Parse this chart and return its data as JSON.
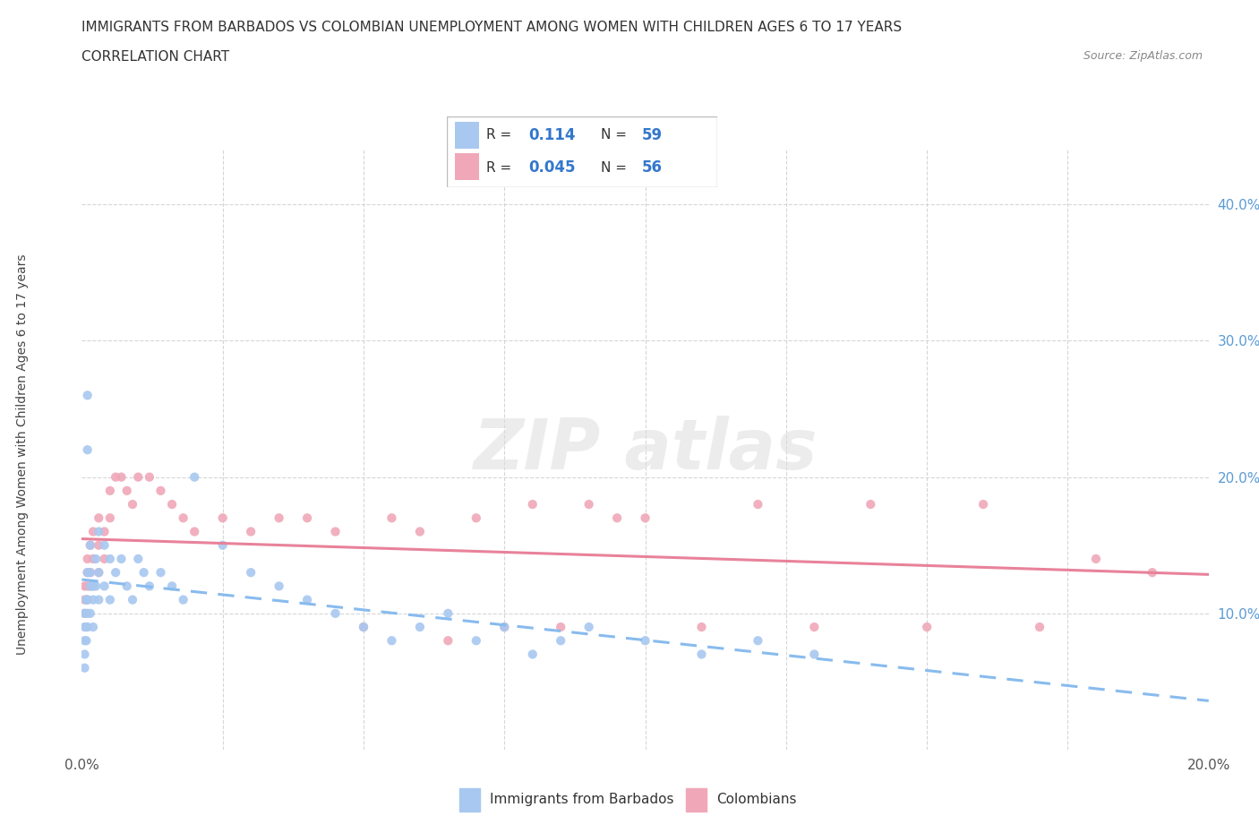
{
  "title": "IMMIGRANTS FROM BARBADOS VS COLOMBIAN UNEMPLOYMENT AMONG WOMEN WITH CHILDREN AGES 6 TO 17 YEARS",
  "subtitle": "CORRELATION CHART",
  "source": "Source: ZipAtlas.com",
  "color_barbados": "#a8c8f0",
  "color_colombians": "#f0a8b8",
  "color_line_barbados": "#88bbee",
  "color_line_colombians": "#e8829a",
  "xlim": [
    0.0,
    0.2
  ],
  "ylim": [
    0.0,
    0.44
  ],
  "barbados_x": [
    0.0005,
    0.0005,
    0.0005,
    0.0005,
    0.0005,
    0.0008,
    0.0008,
    0.0008,
    0.001,
    0.001,
    0.001,
    0.001,
    0.001,
    0.001,
    0.0015,
    0.0015,
    0.0015,
    0.0015,
    0.002,
    0.002,
    0.002,
    0.0025,
    0.0025,
    0.003,
    0.003,
    0.003,
    0.004,
    0.004,
    0.005,
    0.005,
    0.006,
    0.007,
    0.008,
    0.009,
    0.01,
    0.011,
    0.012,
    0.014,
    0.016,
    0.018,
    0.02,
    0.025,
    0.03,
    0.035,
    0.04,
    0.045,
    0.05,
    0.055,
    0.06,
    0.065,
    0.07,
    0.075,
    0.08,
    0.085,
    0.09,
    0.1,
    0.11,
    0.12,
    0.13
  ],
  "barbados_y": [
    0.1,
    0.09,
    0.08,
    0.07,
    0.06,
    0.11,
    0.09,
    0.08,
    0.26,
    0.22,
    0.13,
    0.11,
    0.1,
    0.09,
    0.15,
    0.13,
    0.12,
    0.1,
    0.12,
    0.11,
    0.09,
    0.14,
    0.12,
    0.16,
    0.13,
    0.11,
    0.15,
    0.12,
    0.14,
    0.11,
    0.13,
    0.14,
    0.12,
    0.11,
    0.14,
    0.13,
    0.12,
    0.13,
    0.12,
    0.11,
    0.2,
    0.15,
    0.13,
    0.12,
    0.11,
    0.1,
    0.09,
    0.08,
    0.09,
    0.1,
    0.08,
    0.09,
    0.07,
    0.08,
    0.09,
    0.08,
    0.07,
    0.08,
    0.07
  ],
  "colombians_x": [
    0.0005,
    0.0005,
    0.0005,
    0.001,
    0.001,
    0.001,
    0.001,
    0.0015,
    0.0015,
    0.0015,
    0.002,
    0.002,
    0.002,
    0.003,
    0.003,
    0.003,
    0.004,
    0.004,
    0.005,
    0.005,
    0.006,
    0.007,
    0.008,
    0.009,
    0.01,
    0.012,
    0.014,
    0.016,
    0.018,
    0.02,
    0.025,
    0.03,
    0.035,
    0.04,
    0.045,
    0.05,
    0.055,
    0.06,
    0.065,
    0.07,
    0.075,
    0.08,
    0.085,
    0.09,
    0.095,
    0.1,
    0.11,
    0.12,
    0.13,
    0.14,
    0.15,
    0.16,
    0.17,
    0.18,
    0.19
  ],
  "colombians_y": [
    0.12,
    0.11,
    0.1,
    0.14,
    0.13,
    0.12,
    0.11,
    0.15,
    0.13,
    0.12,
    0.16,
    0.14,
    0.12,
    0.17,
    0.15,
    0.13,
    0.16,
    0.14,
    0.19,
    0.17,
    0.2,
    0.2,
    0.19,
    0.18,
    0.2,
    0.2,
    0.19,
    0.18,
    0.17,
    0.16,
    0.17,
    0.16,
    0.17,
    0.17,
    0.16,
    0.09,
    0.17,
    0.16,
    0.08,
    0.17,
    0.09,
    0.18,
    0.09,
    0.18,
    0.17,
    0.17,
    0.09,
    0.18,
    0.09,
    0.18,
    0.09,
    0.18,
    0.09,
    0.14,
    0.13
  ]
}
